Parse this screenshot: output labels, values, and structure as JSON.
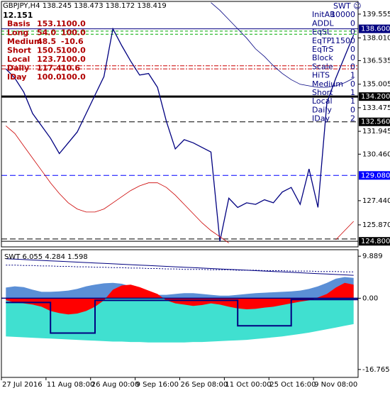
{
  "chart_data": [
    {
      "type": "line",
      "title": "GBPJPY,H4  138.245 138.473 138.172 138.419",
      "subtitle": "12.151",
      "categories": [
        "27 Jul 2016",
        null,
        null,
        null,
        null,
        "11 Aug 08:00",
        null,
        null,
        null,
        null,
        "26 Aug 00:00",
        null,
        null,
        null,
        null,
        "9 Sep 16:00",
        null,
        null,
        null,
        null,
        "26 Sep 08:00",
        null,
        null,
        null,
        null,
        "11 Oct 00:00",
        null,
        null,
        null,
        null,
        "25 Oct 16:00",
        null,
        null,
        null,
        null,
        "9 Nov 08:00",
        null,
        null,
        null,
        null
      ],
      "series": [
        {
          "color": "#000080",
          "width": 1.3,
          "values": [
            136.0,
            135.4,
            134.5,
            133.1,
            132.3,
            131.5,
            130.5,
            131.2,
            131.9,
            133.1,
            134.3,
            135.5,
            138.6,
            137.5,
            136.5,
            135.6,
            135.7,
            134.8,
            132.6,
            130.8,
            131.4,
            131.2,
            130.9,
            130.6,
            124.8,
            127.6,
            127.0,
            127.3,
            127.2,
            127.5,
            127.3,
            128.0,
            128.3,
            127.2,
            129.5,
            127.0,
            133.8,
            135.4,
            136.8,
            138.2
          ]
        },
        {
          "color": "#000080",
          "width": 0.8,
          "values": [
            null,
            null,
            null,
            null,
            null,
            null,
            null,
            null,
            null,
            null,
            null,
            null,
            null,
            null,
            null,
            null,
            null,
            null,
            null,
            null,
            null,
            null,
            null,
            140.3,
            139.8,
            139.2,
            138.6,
            138.0,
            137.3,
            136.8,
            136.2,
            135.7,
            135.3,
            135.0,
            134.9,
            134.8,
            134.8,
            134.9,
            135.1,
            135.4
          ]
        },
        {
          "color": "#cc0000",
          "width": 0.8,
          "values": [
            132.3,
            131.8,
            131.0,
            130.2,
            129.4,
            128.6,
            127.9,
            127.3,
            126.9,
            126.7,
            126.7,
            126.9,
            127.3,
            127.7,
            128.1,
            128.4,
            128.6,
            128.6,
            128.3,
            127.8,
            127.2,
            126.6,
            126.0,
            125.5,
            125.1,
            124.7,
            null,
            null,
            null,
            null,
            null,
            null,
            null,
            null,
            null,
            null,
            null,
            124.9,
            125.5,
            126.1
          ]
        }
      ],
      "ylim": [
        124.44,
        140.38
      ],
      "yticks": [
        139.555,
        {
          "value": 138.01,
          "label": "138.010"
        },
        136.535,
        135.005,
        133.475,
        131.945,
        {
          "value": 130.46,
          "label": "130.460"
        },
        {
          "value": 127.44,
          "label": "127.440"
        },
        {
          "value": 125.87,
          "label": "125.870"
        }
      ],
      "levels": [
        {
          "value": 138.6,
          "label": "138.600",
          "color": "#000080",
          "dash": "none",
          "width": 1
        },
        {
          "value": 138.45,
          "color": "#00aa00",
          "dash": "4,3",
          "width": 1
        },
        {
          "value": 138.25,
          "color": "#00aa00",
          "dash": "4,3",
          "width": 1
        },
        {
          "value": 136.2,
          "color": "#cc0000",
          "dash": "6,2,2,2",
          "width": 1
        },
        {
          "value": 136.0,
          "color": "#cc0000",
          "dash": "6,2,2,2",
          "width": 1
        },
        {
          "value": 134.2,
          "label": "134.200",
          "color": "#000000",
          "dash": "none",
          "width": 3
        },
        {
          "value": 132.56,
          "label": "132.560",
          "color": "#000000",
          "dash": "8,4",
          "width": 1
        },
        {
          "value": 129.08,
          "label": "129.080",
          "color": "#0000ff",
          "dash": "8,4",
          "width": 1
        },
        {
          "value": 124.95,
          "color": "#000000",
          "dash": "8,4",
          "width": 1
        },
        {
          "value": 124.8,
          "label": "124.800",
          "color": "#000000",
          "dash": "none",
          "width": 1
        }
      ]
    },
    {
      "type": "area",
      "title": "SWT 6.055 4.284 1.598",
      "series": [
        {
          "kind": "area",
          "color": "#40e0d0",
          "values": [
            -9.0,
            -9.1,
            -9.2,
            -9.3,
            -9.4,
            -9.5,
            -9.6,
            -9.7,
            -9.8,
            -9.9,
            -10.0,
            -10.1,
            -10.2,
            -10.2,
            -10.3,
            -10.3,
            -10.4,
            -10.4,
            -10.4,
            -10.4,
            -10.4,
            -10.3,
            -10.3,
            -10.2,
            -10.1,
            -10.0,
            -9.9,
            -9.8,
            -9.6,
            -9.4,
            -9.2,
            -9.0,
            -8.7,
            -8.4,
            -8.1,
            -7.7,
            -7.3,
            -6.9,
            -6.5,
            -6.1
          ]
        },
        {
          "kind": "area",
          "color": "#5b8fd6",
          "values": [
            2.5,
            2.8,
            2.6,
            2.0,
            1.5,
            1.5,
            1.6,
            1.8,
            2.2,
            2.8,
            3.2,
            3.5,
            3.6,
            3.4,
            2.8,
            2.0,
            1.2,
            0.8,
            0.8,
            1.0,
            1.2,
            1.2,
            1.0,
            0.8,
            0.6,
            0.6,
            0.8,
            1.0,
            1.2,
            1.3,
            1.4,
            1.5,
            1.6,
            1.8,
            2.2,
            2.8,
            3.6,
            4.6,
            5.0,
            4.8
          ]
        },
        {
          "kind": "area",
          "color": "#ff0000",
          "values": [
            -0.5,
            -1.0,
            -1.2,
            -1.5,
            -2.0,
            -3.0,
            -3.5,
            -3.8,
            -3.6,
            -3.0,
            -2.0,
            -0.5,
            2.0,
            3.0,
            3.2,
            2.6,
            1.8,
            1.0,
            -0.5,
            -1.2,
            -1.5,
            -1.8,
            -1.6,
            -1.2,
            -1.5,
            -2.0,
            -2.4,
            -2.6,
            -2.5,
            -2.2,
            -2.0,
            -1.6,
            -1.2,
            -0.8,
            -0.5,
            0.2,
            1.0,
            2.5,
            3.6,
            3.2
          ]
        },
        {
          "kind": "line",
          "color": "#000080",
          "dash": "none",
          "values": [
            9.3,
            9.2,
            9.1,
            9.0,
            8.9,
            8.8,
            8.7,
            8.6,
            8.5,
            8.4,
            8.3,
            8.2,
            8.1,
            8.0,
            7.9,
            7.8,
            7.7,
            7.6,
            7.5,
            7.4,
            7.3,
            7.2,
            7.1,
            7.0,
            6.9,
            6.8,
            6.7,
            6.6,
            6.5,
            6.4,
            6.3,
            6.2,
            6.1,
            6.0,
            5.9,
            5.8,
            5.7,
            5.6,
            5.5,
            5.4
          ]
        },
        {
          "kind": "line",
          "color": "#000080",
          "dash": "2,2",
          "values": [
            7.8,
            7.8,
            7.7,
            7.7,
            7.6,
            7.6,
            7.5,
            7.5,
            7.4,
            7.4,
            7.3,
            7.3,
            7.2,
            7.2,
            7.1,
            7.1,
            7.0,
            7.0,
            6.9,
            6.9,
            6.8,
            6.8,
            6.8,
            6.7,
            6.7,
            6.7,
            6.6,
            6.6,
            6.6,
            6.5,
            6.5,
            6.5,
            6.4,
            6.4,
            6.4,
            6.3,
            6.3,
            6.3,
            6.2,
            6.2
          ]
        },
        {
          "kind": "step",
          "color": "#000080",
          "dash": "none",
          "values": [
            -1.0,
            -1.0,
            -1.0,
            -1.0,
            -1.0,
            -8.2,
            -8.2,
            -8.2,
            -8.2,
            -8.2,
            -0.5,
            -0.5,
            -0.5,
            -0.5,
            -0.5,
            -0.5,
            -0.5,
            -0.5,
            -0.5,
            -0.5,
            -0.5,
            -0.5,
            -0.5,
            -0.5,
            -0.5,
            -0.5,
            -6.5,
            -6.5,
            -6.5,
            -6.5,
            -6.5,
            -6.5,
            -0.3,
            -0.3,
            -0.3,
            -0.3,
            -0.3,
            -0.3,
            -0.3,
            -0.3
          ]
        }
      ],
      "baseline_color": "#000080",
      "ylim": [
        -18.63,
        11.42
      ],
      "yticks": [
        9.889,
        {
          "value": 0,
          "label": "0.00"
        },
        -16.765
      ]
    }
  ],
  "info_left": [
    [
      "Basis",
      "153.1",
      "100.0"
    ],
    [
      "Long",
      "54.0",
      "100.0"
    ],
    [
      "Medium",
      "48.5",
      "-10.6"
    ],
    [
      "Short",
      "150.5",
      "100.0"
    ],
    [
      "Local",
      "123.7",
      "100.0"
    ],
    [
      "Daily",
      "117.4",
      "10.6"
    ],
    [
      "IDay",
      "100.0",
      "100.0"
    ]
  ],
  "info_right": [
    [
      "SWT ☺",
      ""
    ],
    [
      "InitAB",
      "10000"
    ],
    [
      "ADDL",
      "0"
    ],
    [
      "EqSL",
      "0"
    ],
    [
      "EqTP",
      "11500"
    ],
    [
      "EqTrS",
      "0"
    ],
    [
      "Block",
      "0"
    ],
    [
      "Scale",
      "0"
    ],
    [
      "HiTS",
      "1"
    ],
    [
      "Medium",
      "0"
    ],
    [
      "Short",
      "1"
    ],
    [
      "Local",
      "1"
    ],
    [
      "Daily",
      "0"
    ],
    [
      "IDay",
      "2"
    ]
  ]
}
